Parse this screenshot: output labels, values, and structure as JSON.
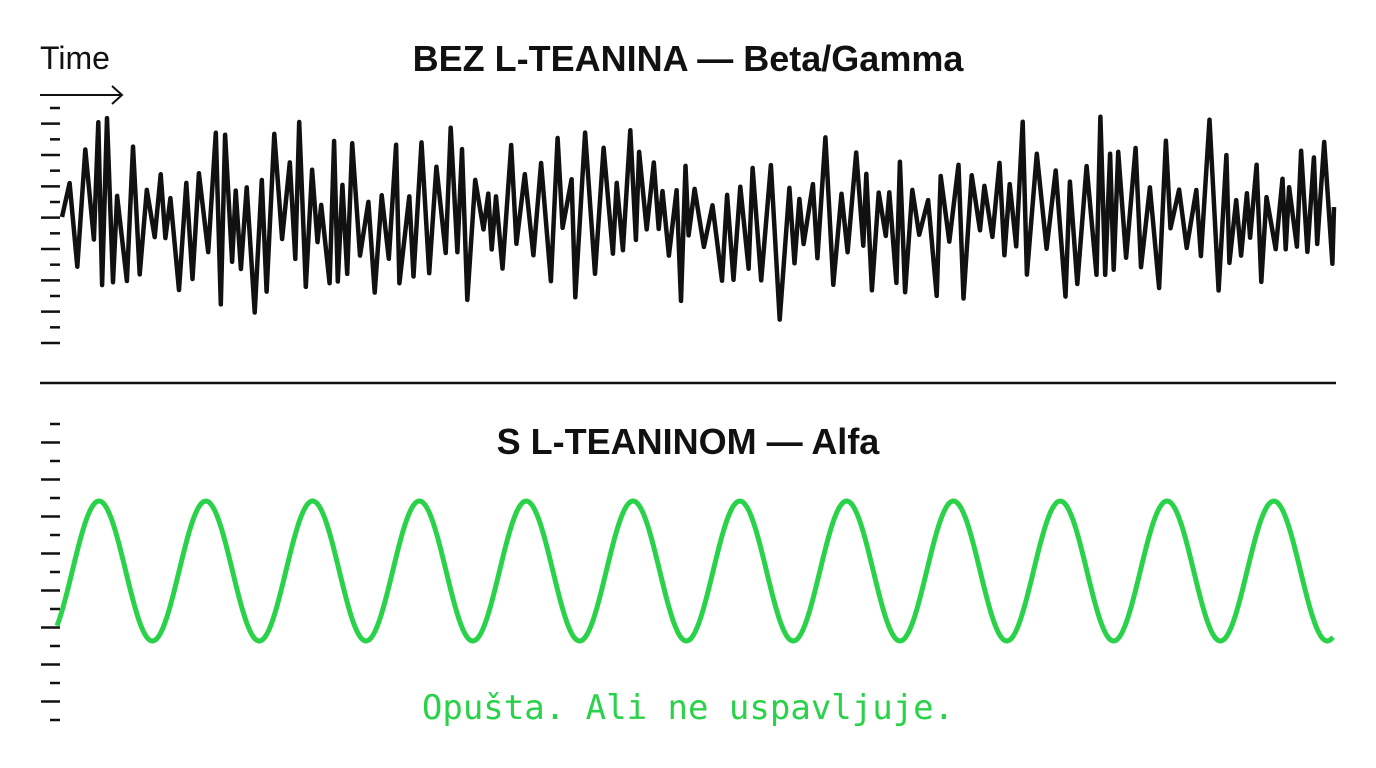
{
  "axis": {
    "time_label": "Time"
  },
  "panels": [
    {
      "title": "BEZ L-TEANINA — Beta/Gamma",
      "wave_color": "#111111",
      "wave": "irregular high-frequency"
    },
    {
      "title": "S L-TEANINOM — Alfa",
      "wave_color": "#2ad24a",
      "wave": "regular sine",
      "cycles_visible": 12
    }
  ],
  "caption": "Opušta. Ali ne uspavljuje.",
  "colors": {
    "accent": "#2ad24a",
    "ink": "#111111",
    "background": "#ffffff"
  }
}
